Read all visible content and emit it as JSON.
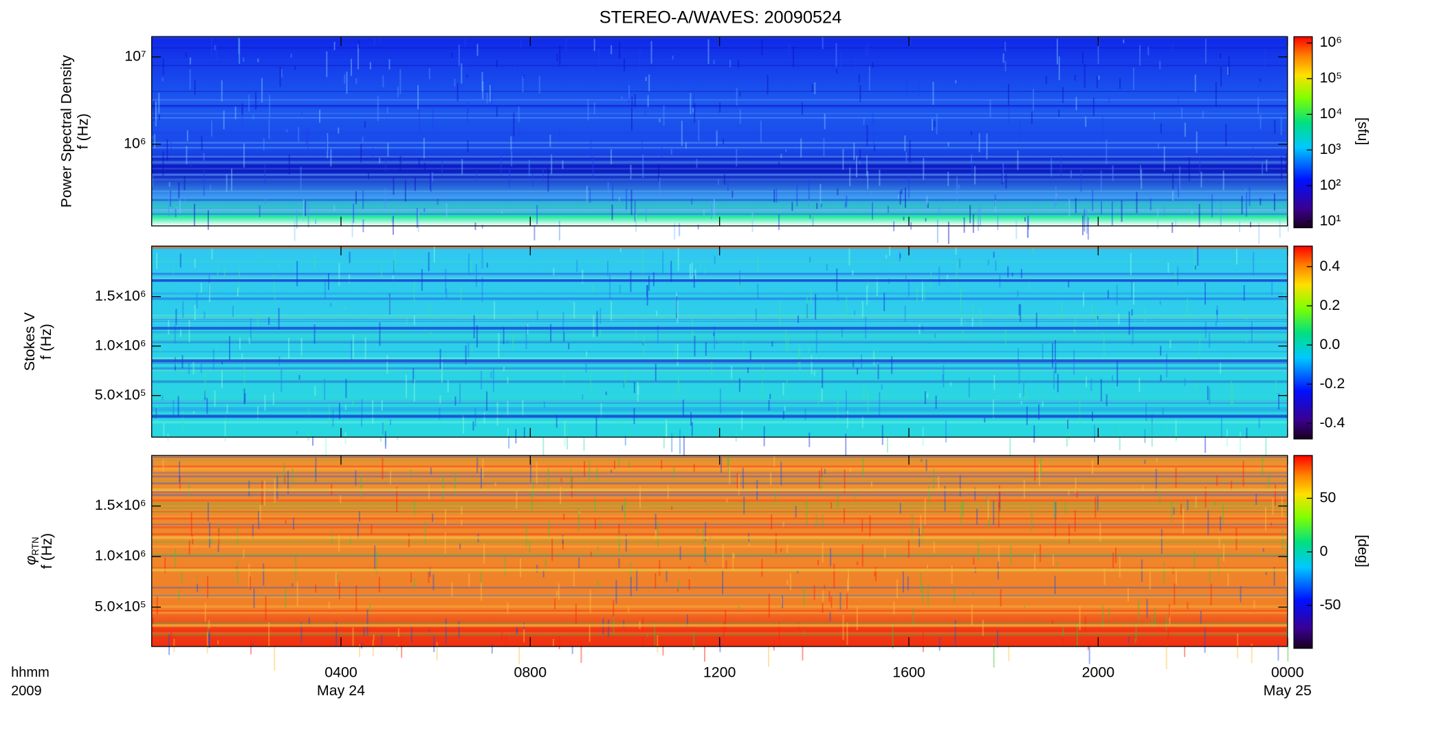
{
  "chart_data": {
    "type": "heatmap",
    "title": "STEREO-A/WAVES: 20090524",
    "xlim": [
      0,
      24
    ],
    "xticks": [
      {
        "value": 4,
        "label": "0400"
      },
      {
        "value": 8,
        "label": "0800"
      },
      {
        "value": 12,
        "label": "1200"
      },
      {
        "value": 16,
        "label": "1600"
      },
      {
        "value": 20,
        "label": "2000"
      },
      {
        "value": 24,
        "label": "0000"
      }
    ],
    "date_labels": [
      {
        "value": 4,
        "label": "May 24"
      },
      {
        "value": 24,
        "label": "May 25"
      }
    ],
    "x_axis_labels": [
      "hhmm",
      "2009"
    ],
    "panels": [
      {
        "ylabel": [
          "Power Spectral Density",
          "f (Hz)"
        ],
        "ylog": true,
        "ylim": [
          116000,
          17000000
        ],
        "yticks": [
          {
            "value": 1000000,
            "label": "10⁶"
          },
          {
            "value": 10000000,
            "label": "10⁷"
          }
        ],
        "colorbar": {
          "log": true,
          "clim": [
            6.6,
            1500000
          ],
          "label": "[sfu]",
          "ticks": [
            {
              "value": 10,
              "label": "10¹"
            },
            {
              "value": 100,
              "label": "10²"
            },
            {
              "value": 1000,
              "label": "10³"
            },
            {
              "value": 10000,
              "label": "10⁴"
            },
            {
              "value": 100000,
              "label": "10⁵"
            },
            {
              "value": 1000000,
              "label": "10⁶"
            }
          ]
        }
      },
      {
        "ylabel": [
          "Stokes V",
          "f (Hz)"
        ],
        "ylog": false,
        "ylim": [
          80000,
          2010000
        ],
        "yticks": [
          {
            "value": 500000,
            "label": "5.0×10⁵"
          },
          {
            "value": 1000000,
            "label": "1.0×10⁶"
          },
          {
            "value": 1500000,
            "label": "1.5×10⁶"
          }
        ],
        "colorbar": {
          "log": false,
          "clim": [
            -0.48,
            0.505
          ],
          "ticks": [
            {
              "value": -0.4,
              "label": "-0.4"
            },
            {
              "value": -0.2,
              "label": "-0.2"
            },
            {
              "value": 0,
              "label": "0.0"
            },
            {
              "value": 0.2,
              "label": "0.2"
            },
            {
              "value": 0.4,
              "label": "0.4"
            }
          ]
        }
      },
      {
        "ylabel_symbol": "φ",
        "ylabel_subscript": "RTN",
        "ylabel": [
          "f (Hz)"
        ],
        "ylog": false,
        "ylim": [
          110000,
          2000000
        ],
        "yticks": [
          {
            "value": 500000,
            "label": "5.0×10⁵"
          },
          {
            "value": 1000000,
            "label": "1.0×10⁶"
          },
          {
            "value": 1500000,
            "label": "1.5×10⁶"
          }
        ],
        "colorbar": {
          "log": false,
          "clim": [
            -90,
            90
          ],
          "label": "[deg]",
          "ticks": [
            -50,
            0,
            50
          ]
        }
      }
    ]
  }
}
